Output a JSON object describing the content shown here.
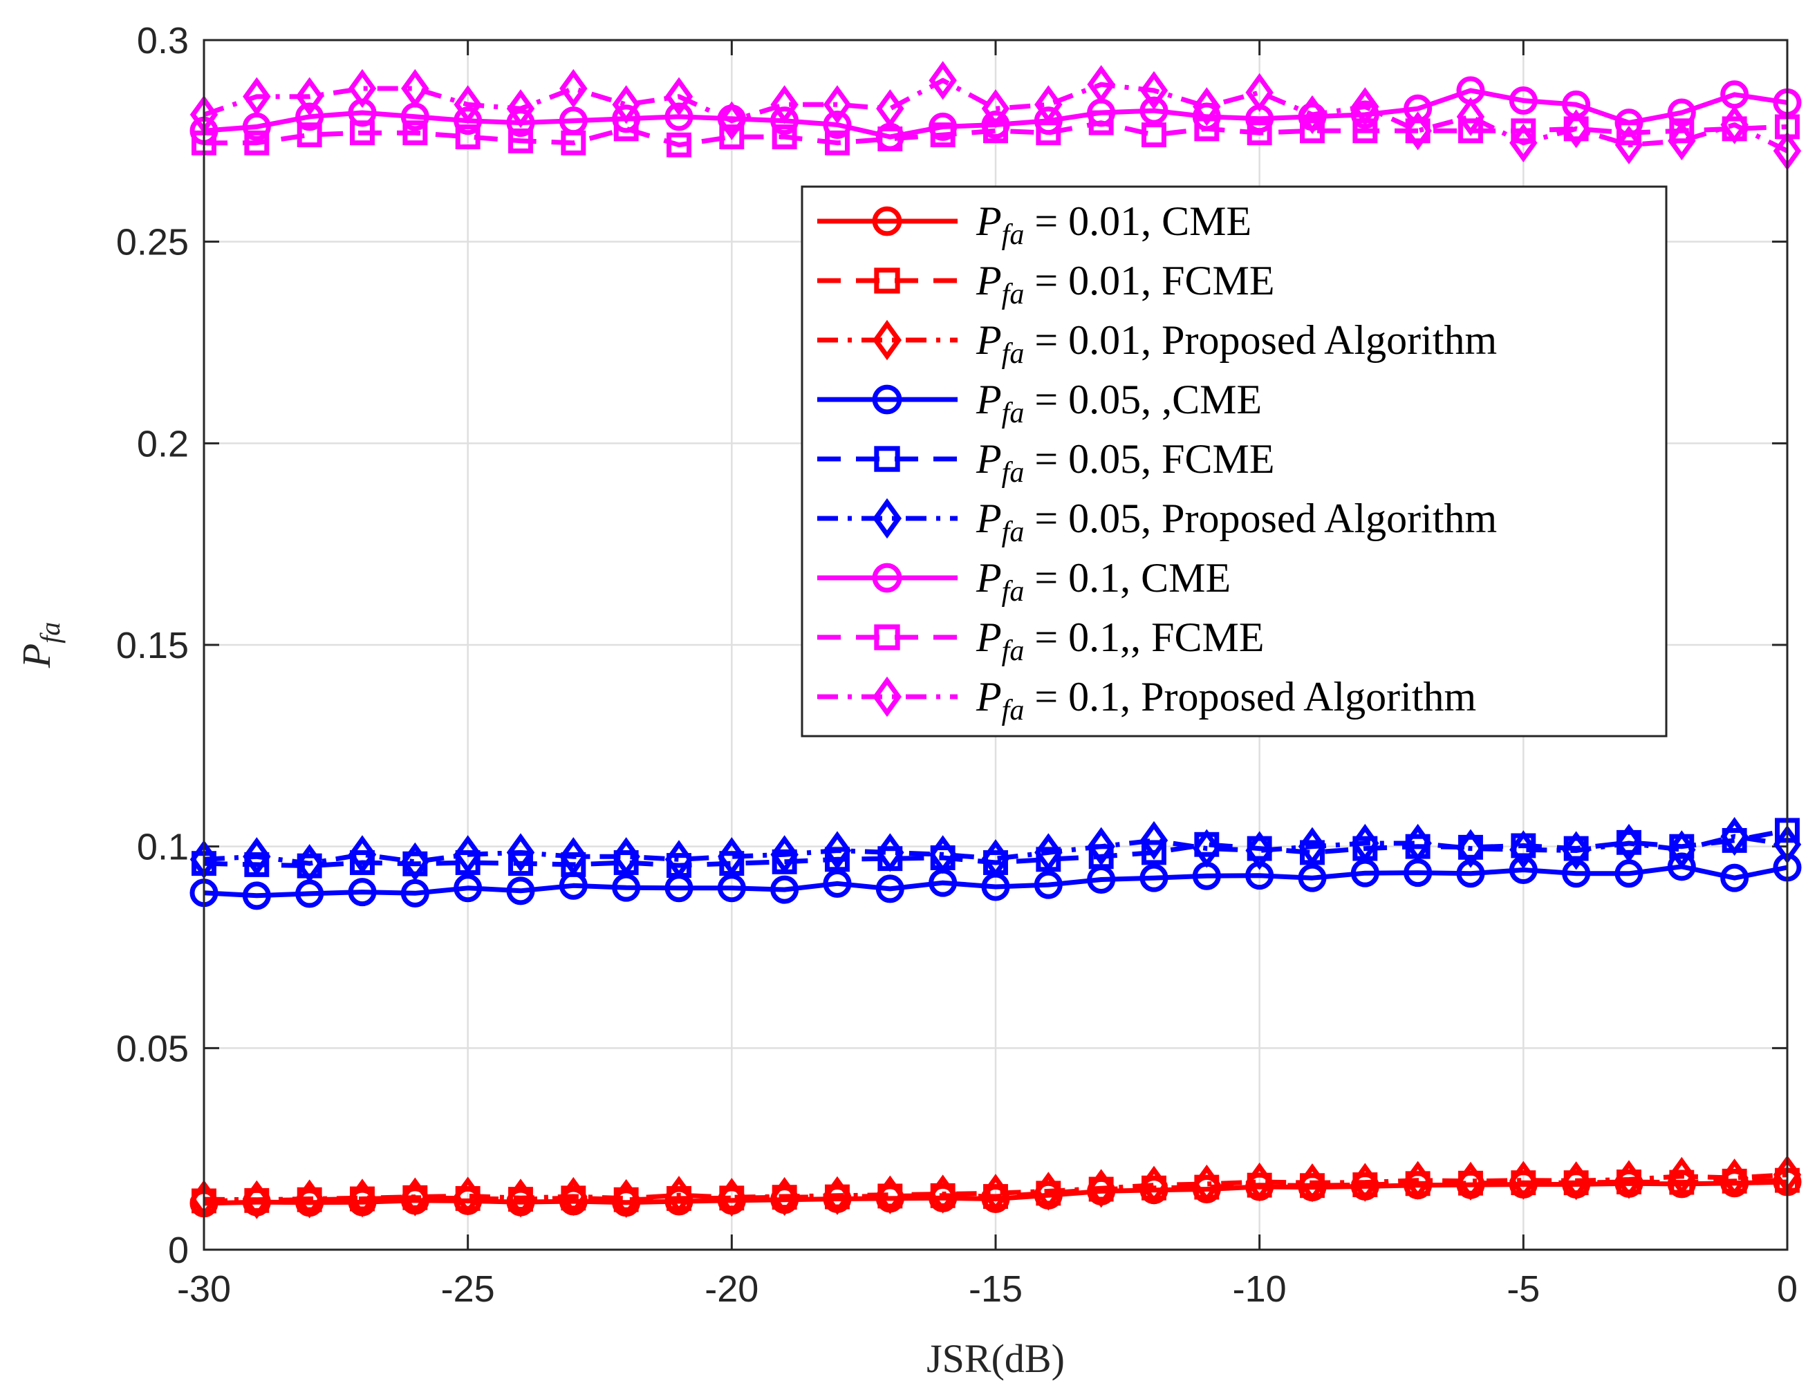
{
  "chart_data": {
    "type": "line",
    "xlabel": "JSR(dB)",
    "ylabel": "P_fa",
    "ylabel_base": "P",
    "ylabel_sub": "fa",
    "xlim": [
      -30,
      0
    ],
    "ylim": [
      0,
      0.3
    ],
    "xticks": [
      -30,
      -25,
      -20,
      -15,
      -10,
      -5,
      0
    ],
    "xtick_labels": [
      "-30",
      "-25",
      "-20",
      "-15",
      "-10",
      "-5",
      "0"
    ],
    "yticks": [
      0,
      0.05,
      0.1,
      0.15,
      0.2,
      0.25,
      0.3
    ],
    "ytick_labels": [
      "0",
      "0.05",
      "0.1",
      "0.15",
      "0.2",
      "0.25",
      "0.3"
    ],
    "grid": true,
    "legend_position": "upper-right",
    "x": [
      -30,
      -29,
      -28,
      -27,
      -26,
      -25,
      -24,
      -23,
      -22,
      -21,
      -20,
      -19,
      -18,
      -17,
      -16,
      -15,
      -14,
      -13,
      -12,
      -11,
      -10,
      -9,
      -8,
      -7,
      -6,
      -5,
      -4,
      -3,
      -2,
      -1,
      0
    ],
    "series": [
      {
        "name": "P_fa = 0.01, CME",
        "legend_base": "P",
        "legend_sub": "fa",
        "legend_rest": " = 0.01, CME",
        "color": "#ff0000",
        "linestyle": "solid",
        "marker": "circle",
        "values": [
          0.0115,
          0.0118,
          0.0117,
          0.0118,
          0.0122,
          0.0121,
          0.0118,
          0.012,
          0.0117,
          0.012,
          0.0122,
          0.0124,
          0.0126,
          0.0127,
          0.0128,
          0.0126,
          0.0135,
          0.0145,
          0.0148,
          0.015,
          0.0156,
          0.0155,
          0.0157,
          0.016,
          0.0161,
          0.0162,
          0.0162,
          0.0164,
          0.0163,
          0.0165,
          0.0168
        ]
      },
      {
        "name": "P_fa = 0.01, FCME",
        "legend_base": "P",
        "legend_sub": "fa",
        "legend_rest": " = 0.01, FCME",
        "color": "#ff0000",
        "linestyle": "dashed",
        "marker": "square",
        "values": [
          0.0121,
          0.0122,
          0.0124,
          0.0126,
          0.0129,
          0.0127,
          0.0125,
          0.0128,
          0.0124,
          0.0127,
          0.0128,
          0.013,
          0.0131,
          0.0133,
          0.0134,
          0.0132,
          0.014,
          0.015,
          0.0153,
          0.0155,
          0.016,
          0.0159,
          0.0161,
          0.0164,
          0.0165,
          0.0166,
          0.0166,
          0.0168,
          0.0167,
          0.017,
          0.0172
        ]
      },
      {
        "name": "P_fa = 0.01, Proposed Algorithm",
        "legend_base": "P",
        "legend_sub": "fa",
        "legend_rest": " = 0.01, Proposed Algorithm",
        "color": "#ff0000",
        "linestyle": "dashdot",
        "marker": "diamond",
        "values": [
          0.0125,
          0.0124,
          0.0126,
          0.0128,
          0.0131,
          0.0133,
          0.0128,
          0.0132,
          0.0127,
          0.0135,
          0.013,
          0.0132,
          0.0134,
          0.0136,
          0.0138,
          0.014,
          0.0145,
          0.0152,
          0.016,
          0.0163,
          0.0168,
          0.0166,
          0.0167,
          0.0172,
          0.017,
          0.0172,
          0.0171,
          0.0174,
          0.0182,
          0.0178,
          0.0186
        ]
      },
      {
        "name": "P_fa = 0.05, ,CME",
        "legend_base": "P",
        "legend_sub": "fa",
        "legend_rest": " = 0.05, ,CME",
        "color": "#0000ff",
        "linestyle": "solid",
        "marker": "circle",
        "values": [
          0.0885,
          0.0878,
          0.0883,
          0.0887,
          0.0884,
          0.0897,
          0.089,
          0.0903,
          0.0898,
          0.0897,
          0.0897,
          0.0893,
          0.0908,
          0.0895,
          0.091,
          0.09,
          0.0905,
          0.0918,
          0.0922,
          0.0927,
          0.0928,
          0.0922,
          0.0934,
          0.0935,
          0.0933,
          0.0942,
          0.0933,
          0.0933,
          0.095,
          0.0922,
          0.0948
        ]
      },
      {
        "name": "P_fa = 0.05, FCME",
        "legend_base": "P",
        "legend_sub": "fa",
        "legend_rest": " = 0.05, FCME",
        "color": "#0000ff",
        "linestyle": "dashed",
        "marker": "square",
        "values": [
          0.0958,
          0.0955,
          0.0952,
          0.096,
          0.0957,
          0.096,
          0.0958,
          0.0955,
          0.096,
          0.0953,
          0.0958,
          0.0962,
          0.0968,
          0.097,
          0.0972,
          0.096,
          0.0968,
          0.0975,
          0.0985,
          0.1005,
          0.0995,
          0.0985,
          0.0995,
          0.1,
          0.0998,
          0.1002,
          0.0995,
          0.101,
          0.1,
          0.1015,
          0.104
        ]
      },
      {
        "name": "P_fa = 0.05, Proposed Algorithm",
        "legend_base": "P",
        "legend_sub": "fa",
        "legend_rest": " = 0.05, Proposed Algorithm",
        "color": "#0000ff",
        "linestyle": "dashdot",
        "marker": "diamond",
        "values": [
          0.0968,
          0.0975,
          0.0958,
          0.098,
          0.0962,
          0.098,
          0.0985,
          0.0975,
          0.0975,
          0.0968,
          0.0975,
          0.098,
          0.099,
          0.0985,
          0.098,
          0.097,
          0.0985,
          0.1,
          0.1015,
          0.0995,
          0.099,
          0.1,
          0.1008,
          0.1008,
          0.0995,
          0.0992,
          0.099,
          0.1008,
          0.0992,
          0.1025,
          0.1005
        ]
      },
      {
        "name": "P_fa = 0.1, CME",
        "legend_base": "P",
        "legend_sub": "fa",
        "legend_rest": " = 0.1, CME",
        "color": "#ff00ff",
        "linestyle": "solid",
        "marker": "circle",
        "values": [
          0.2775,
          0.2785,
          0.281,
          0.282,
          0.281,
          0.28,
          0.2795,
          0.28,
          0.2805,
          0.281,
          0.2805,
          0.28,
          0.279,
          0.276,
          0.2785,
          0.279,
          0.28,
          0.282,
          0.2825,
          0.281,
          0.2805,
          0.281,
          0.2815,
          0.283,
          0.2875,
          0.285,
          0.284,
          0.2795,
          0.282,
          0.2865,
          0.2845
        ]
      },
      {
        "name": "P_fa = 0.1,, FCME",
        "legend_base": "P",
        "legend_sub": "fa",
        "legend_rest": " = 0.1,, FCME",
        "color": "#ff00ff",
        "linestyle": "dashed",
        "marker": "square",
        "values": [
          0.2745,
          0.2745,
          0.2765,
          0.277,
          0.277,
          0.276,
          0.275,
          0.2745,
          0.278,
          0.274,
          0.276,
          0.276,
          0.2745,
          0.2755,
          0.2765,
          0.2775,
          0.277,
          0.2795,
          0.2765,
          0.278,
          0.277,
          0.2775,
          0.2775,
          0.2775,
          0.2775,
          0.2775,
          0.278,
          0.277,
          0.2775,
          0.278,
          0.2785
        ]
      },
      {
        "name": "P_fa = 0.1, Proposed Algorithm",
        "legend_base": "P",
        "legend_sub": "fa",
        "legend_rest": " = 0.1, Proposed Algorithm",
        "color": "#ff00ff",
        "linestyle": "dashdot",
        "marker": "diamond",
        "values": [
          0.2815,
          0.286,
          0.286,
          0.288,
          0.288,
          0.284,
          0.283,
          0.288,
          0.284,
          0.286,
          0.28,
          0.284,
          0.284,
          0.283,
          0.29,
          0.283,
          0.284,
          0.289,
          0.2875,
          0.2835,
          0.287,
          0.2815,
          0.2835,
          0.2775,
          0.281,
          0.2745,
          0.278,
          0.274,
          0.275,
          0.279,
          0.2725
        ]
      }
    ]
  }
}
